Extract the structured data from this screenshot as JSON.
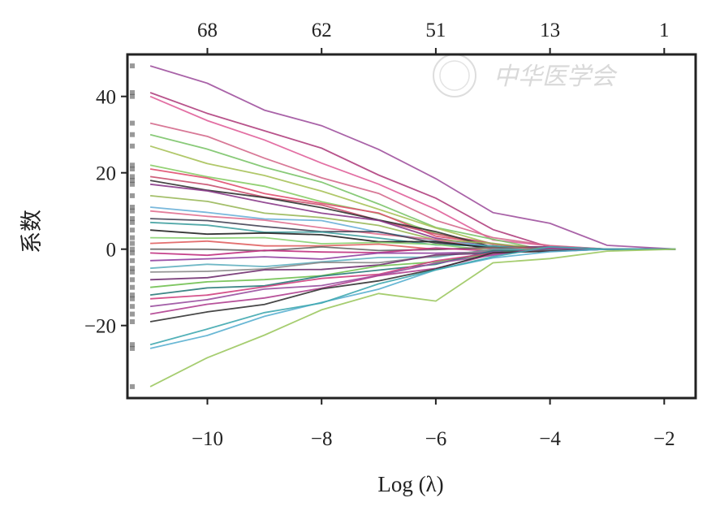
{
  "chart_data": {
    "type": "line",
    "title": "",
    "xlabel": "Log (λ)",
    "ylabel": "系数",
    "xlim": [
      -11.4,
      -1.45
    ],
    "ylim": [
      -39,
      51
    ],
    "x_ticks": [
      -10,
      -8,
      -6,
      -4,
      -2
    ],
    "x_tick_labels": [
      "−10",
      "−8",
      "−6",
      "−4",
      "−2"
    ],
    "y_ticks": [
      40,
      20,
      0,
      -20
    ],
    "y_tick_labels": [
      "40",
      "20",
      "0",
      "−20"
    ],
    "top_axis": {
      "positions": [
        -10,
        -8,
        -6,
        -4,
        -2
      ],
      "labels": [
        "68",
        "62",
        "51",
        "13",
        "1"
      ]
    },
    "grid": false,
    "legend": "none",
    "watermark": "中华医学会",
    "x": [
      -11,
      -10,
      -9,
      -8,
      -7,
      -6,
      -5,
      -4,
      -3,
      -1.8
    ],
    "series": [
      {
        "color": "#a0529e",
        "values": [
          48,
          43,
          37,
          32,
          26,
          19,
          9,
          7,
          1,
          0
        ]
      },
      {
        "color": "#b0407e",
        "values": [
          41,
          36,
          31,
          26,
          20,
          13,
          5,
          1,
          0,
          0
        ]
      },
      {
        "color": "#e0609a",
        "values": [
          40,
          34,
          28,
          23,
          17,
          10,
          3,
          0.5,
          0,
          0
        ]
      },
      {
        "color": "#d46a8c",
        "values": [
          33,
          29,
          24,
          19,
          14,
          8,
          3,
          0.5,
          0,
          0
        ]
      },
      {
        "color": "#7cc46a",
        "values": [
          30,
          26,
          22,
          17,
          12,
          6,
          2,
          0,
          0,
          0
        ]
      },
      {
        "color": "#a8c25a",
        "values": [
          27,
          23,
          19,
          15,
          11,
          5,
          1.5,
          0,
          0,
          0
        ]
      },
      {
        "color": "#88cc66",
        "values": [
          22,
          19,
          16,
          13,
          9,
          4,
          1,
          0,
          0,
          0
        ]
      },
      {
        "color": "#e05070",
        "values": [
          21,
          18,
          15,
          12,
          9,
          4,
          1,
          0,
          0,
          0
        ]
      },
      {
        "color": "#c8506e",
        "values": [
          19,
          17,
          14,
          11,
          8,
          4,
          1,
          0,
          0,
          0
        ]
      },
      {
        "color": "#333333",
        "values": [
          18,
          16,
          13,
          11,
          8,
          4,
          1,
          0,
          0,
          0
        ]
      },
      {
        "color": "#8a3a8a",
        "values": [
          17,
          15,
          12,
          10,
          7,
          3,
          1,
          0,
          0,
          0
        ]
      },
      {
        "color": "#9ab85a",
        "values": [
          14,
          12,
          10,
          8,
          6,
          3,
          1,
          0,
          0,
          0
        ]
      },
      {
        "color": "#6ab0d8",
        "values": [
          11,
          10,
          8,
          7,
          5,
          2,
          0.5,
          0,
          0,
          0
        ]
      },
      {
        "color": "#e07090",
        "values": [
          10,
          9,
          7,
          6,
          4,
          2,
          0.5,
          0,
          0,
          0
        ]
      },
      {
        "color": "#444455",
        "values": [
          8,
          7,
          6,
          5,
          4,
          2,
          0.5,
          0,
          0,
          0
        ]
      },
      {
        "color": "#40a0a0",
        "values": [
          7,
          6,
          5,
          4,
          3,
          1.5,
          0.3,
          0,
          0,
          0
        ]
      },
      {
        "color": "#222222",
        "values": [
          5,
          4.5,
          4,
          3.5,
          2.5,
          1.5,
          0.3,
          0,
          0,
          0
        ]
      },
      {
        "color": "#88d070",
        "values": [
          3,
          3,
          2.5,
          2,
          1.5,
          1,
          0.2,
          0,
          0,
          0
        ]
      },
      {
        "color": "#e06060",
        "values": [
          1.5,
          1.5,
          1.2,
          1,
          0.8,
          0.5,
          0.1,
          0,
          0,
          0
        ]
      },
      {
        "color": "#666666",
        "values": [
          0,
          0,
          0,
          0,
          0,
          0,
          0,
          0,
          0,
          0
        ]
      },
      {
        "color": "#c03080",
        "values": [
          -1,
          -1,
          -0.8,
          -0.7,
          -0.5,
          -0.3,
          -0.1,
          0,
          0,
          0
        ]
      },
      {
        "color": "#9040a0",
        "values": [
          -3,
          -2.7,
          -2.3,
          -2,
          -1.5,
          -1,
          -0.3,
          0,
          0,
          0
        ]
      },
      {
        "color": "#60b0c0",
        "values": [
          -5,
          -4.5,
          -4,
          -3.5,
          -2.5,
          -1.5,
          -0.5,
          0,
          0,
          0
        ]
      },
      {
        "color": "#888888",
        "values": [
          -6,
          -5.5,
          -5,
          -4,
          -3,
          -2,
          -0.5,
          0,
          0,
          0
        ]
      },
      {
        "color": "#703070",
        "values": [
          -8,
          -7,
          -6,
          -5,
          -4,
          -2,
          -0.5,
          0,
          0,
          0
        ]
      },
      {
        "color": "#70c050",
        "values": [
          -10,
          -9,
          -8,
          -6.5,
          -5,
          -3,
          -1,
          0,
          0,
          0
        ]
      },
      {
        "color": "#2a7a7a",
        "values": [
          -12,
          -10.5,
          -9,
          -7.5,
          -5.5,
          -3.5,
          -1,
          0,
          0,
          0
        ]
      },
      {
        "color": "#d04080",
        "values": [
          -13,
          -11.5,
          -10,
          -8,
          -6,
          -3.5,
          -1,
          0,
          0,
          0
        ]
      },
      {
        "color": "#9a50a0",
        "values": [
          -15,
          -13,
          -11,
          -9,
          -7,
          -4,
          -1,
          0,
          0,
          0
        ]
      },
      {
        "color": "#b04090",
        "values": [
          -17,
          -15,
          -12.5,
          -10,
          -7.5,
          -4.5,
          -1.5,
          0,
          0,
          0
        ]
      },
      {
        "color": "#333333",
        "values": [
          -19,
          -16.5,
          -14,
          -11,
          -8,
          -5,
          -1.5,
          0,
          0,
          0
        ]
      },
      {
        "color": "#5ab0d0",
        "values": [
          -26,
          -22,
          -18,
          -14,
          -10,
          -6,
          -2,
          -0.5,
          0,
          0
        ]
      },
      {
        "color": "#40a8b0",
        "values": [
          -25,
          -21,
          -17,
          -13.5,
          -9.5,
          -5.5,
          -1.5,
          0,
          0,
          0
        ]
      },
      {
        "color": "#9cc860",
        "values": [
          -36,
          -29,
          -22,
          -16,
          -12,
          -13,
          -4,
          -2.5,
          -0.5,
          0
        ]
      }
    ]
  }
}
